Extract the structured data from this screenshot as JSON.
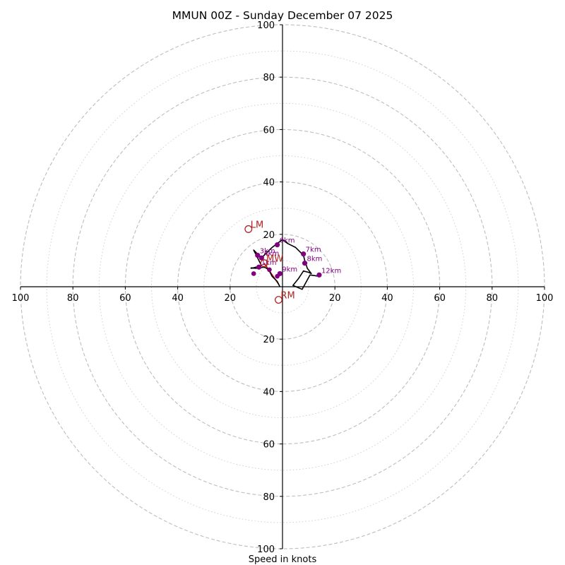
{
  "chart_data": {
    "type": "hodograph",
    "title": "MMUN 00Z - Sunday December 07 2025",
    "xlabel": "Speed in knots",
    "range": [
      -100,
      100
    ],
    "rings_major": [
      20,
      40,
      60,
      80,
      100
    ],
    "rings_minor": [
      10,
      30,
      50,
      70,
      90
    ],
    "x_ticks": [
      "100",
      "80",
      "60",
      "40",
      "20",
      "20",
      "40",
      "60",
      "80",
      "100"
    ],
    "x_tick_values": [
      -100,
      -80,
      -60,
      -40,
      -20,
      20,
      40,
      60,
      80,
      100
    ],
    "y_ticks": [
      "100",
      "80",
      "60",
      "40",
      "20",
      "20",
      "40",
      "60",
      "80",
      "100"
    ],
    "y_tick_values": [
      100,
      80,
      60,
      40,
      20,
      -20,
      -40,
      -60,
      -80,
      -100
    ],
    "hodograph": [
      [
        -1,
        0
      ],
      [
        -2,
        2
      ],
      [
        -4,
        4
      ],
      [
        -5,
        6
      ],
      [
        -6,
        7
      ],
      [
        -7,
        7.5
      ],
      [
        -10,
        7
      ],
      [
        -12,
        7.2
      ],
      [
        -12,
        7
      ],
      [
        -8,
        8
      ],
      [
        -9,
        10
      ],
      [
        -10,
        12
      ],
      [
        -11,
        14
      ],
      [
        -10,
        13
      ],
      [
        -8,
        11
      ],
      [
        -7,
        12
      ],
      [
        -6,
        13
      ],
      [
        -4,
        15
      ],
      [
        -2,
        16.5
      ],
      [
        0,
        18
      ],
      [
        2,
        16.5
      ],
      [
        5,
        15
      ],
      [
        7,
        13
      ],
      [
        8,
        12
      ],
      [
        8.5,
        10
      ],
      [
        9.5,
        7
      ],
      [
        11,
        5
      ],
      [
        10,
        5.5
      ],
      [
        8,
        6
      ],
      [
        6,
        3
      ],
      [
        4,
        0.5
      ],
      [
        7.5,
        -1
      ],
      [
        10.5,
        4.5
      ],
      [
        14,
        4
      ]
    ],
    "height_markers": [
      {
        "label": "1km",
        "u": -9,
        "v": 7.5
      },
      {
        "label": "3km",
        "u": -9.5,
        "v": 12
      },
      {
        "label": "4km",
        "u": -8,
        "v": 11
      },
      {
        "label": "6km",
        "u": -2,
        "v": 16
      },
      {
        "label": "7km",
        "u": 8,
        "v": 12.5
      },
      {
        "label": "8km",
        "u": 8.5,
        "v": 9
      },
      {
        "label": "9km",
        "u": -1,
        "v": 5
      },
      {
        "label": "12km",
        "u": 14,
        "v": 4.5
      }
    ],
    "extra_points": [
      {
        "u": -11,
        "v": 5
      },
      {
        "u": -5,
        "v": 6.5
      },
      {
        "u": -2,
        "v": 4
      }
    ],
    "storm_motion": [
      {
        "label": "LM",
        "u": -13,
        "v": 22
      },
      {
        "label": "RM",
        "u": -1.5,
        "v": -5
      },
      {
        "label": "MW",
        "u": -7,
        "v": 9
      }
    ],
    "shear_vector": {
      "from": [
        -7,
        9
      ],
      "to": [
        -1.5,
        1
      ]
    },
    "colors": {
      "rings": "#bdbdbd",
      "hodograph": "#000000",
      "markers": "#800080",
      "storm_motion": "#b22222",
      "shear_vector": "#cc0000",
      "axes": "#000000"
    }
  }
}
